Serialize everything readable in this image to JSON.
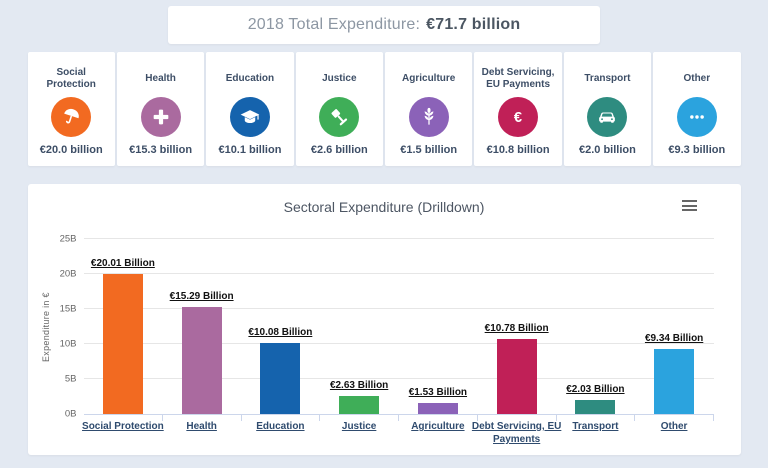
{
  "header": {
    "title_prefix": "2018 Total Expenditure:",
    "title_value": "€71.7 billion"
  },
  "cards": [
    {
      "label": "Social Protection",
      "value": "€20.0 billion",
      "color": "#f26a21",
      "icon": "umbrella-icon"
    },
    {
      "label": "Health",
      "value": "€15.3 billion",
      "color": "#aa6a9f",
      "icon": "plus-icon"
    },
    {
      "label": "Education",
      "value": "€10.1 billion",
      "color": "#1563ad",
      "icon": "graduation-cap-icon"
    },
    {
      "label": "Justice",
      "value": "€2.6 billion",
      "color": "#3fae58",
      "icon": "gavel-icon"
    },
    {
      "label": "Agriculture",
      "value": "€1.5 billion",
      "color": "#8b62b8",
      "icon": "wheat-icon"
    },
    {
      "label": "Debt Servicing, EU Payments",
      "value": "€10.8 billion",
      "color": "#c02057",
      "icon": "euro-icon"
    },
    {
      "label": "Transport",
      "value": "€2.0 billion",
      "color": "#2e8c80",
      "icon": "car-icon"
    },
    {
      "label": "Other",
      "value": "€9.3 billion",
      "color": "#2ba3de",
      "icon": "ellipsis-icon"
    }
  ],
  "chart": {
    "menu_icon": "hamburger-icon"
  },
  "chart_data": {
    "type": "bar",
    "title": "Sectoral Expenditure (Drilldown)",
    "xlabel": "",
    "ylabel": "Expenditure in €",
    "ylim": [
      0,
      25
    ],
    "ytick_labels": [
      "0B",
      "5B",
      "10B",
      "15B",
      "20B",
      "25B"
    ],
    "grid": true,
    "legend": "none",
    "categories": [
      "Social Protection",
      "Health",
      "Education",
      "Justice",
      "Agriculture",
      "Debt Servicing, EU Payments",
      "Transport",
      "Other"
    ],
    "values": [
      20.01,
      15.29,
      10.08,
      2.63,
      1.53,
      10.78,
      2.03,
      9.34
    ],
    "value_labels": [
      "€20.01 Billion",
      "€15.29 Billion",
      "€10.08 Billion",
      "€2.63 Billion",
      "€1.53 Billion",
      "€10.78 Billion",
      "€2.03 Billion",
      "€9.34 Billion"
    ],
    "colors": [
      "#f26a21",
      "#aa6a9f",
      "#1563ad",
      "#3fae58",
      "#8b62b8",
      "#c02057",
      "#2e8c80",
      "#2ba3de"
    ]
  }
}
